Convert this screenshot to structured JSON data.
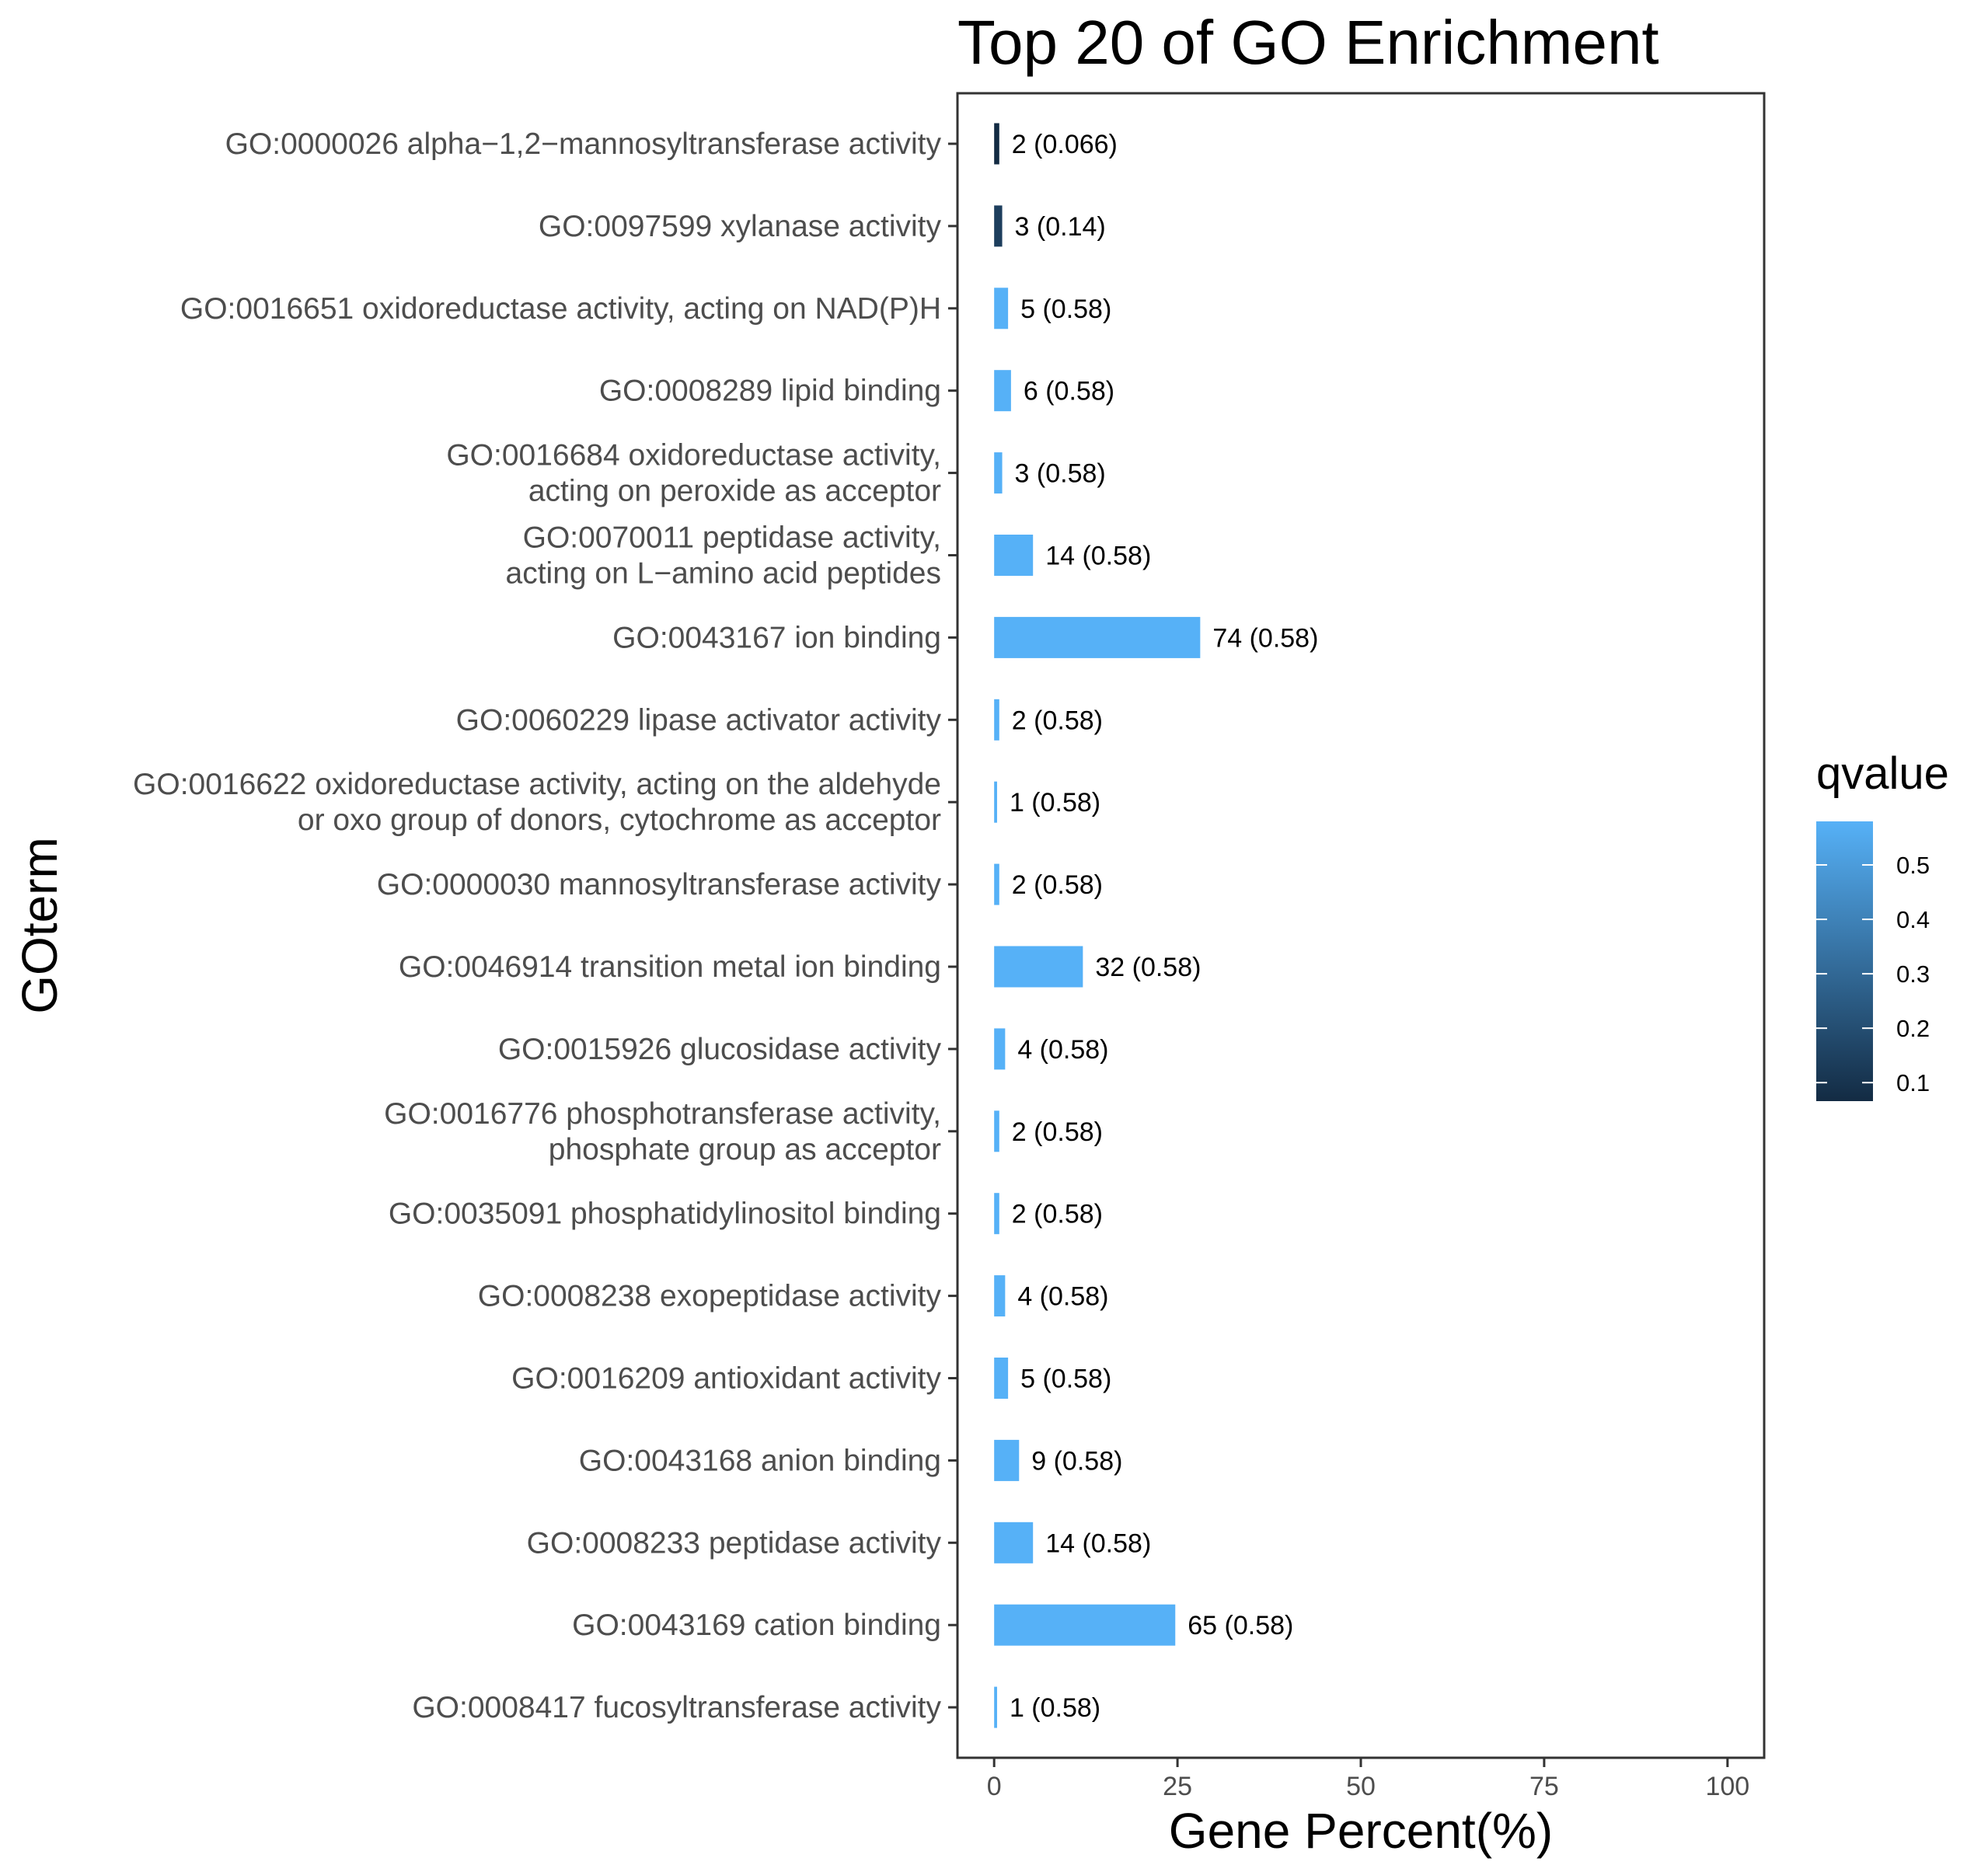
{
  "chart_data": {
    "type": "bar",
    "orientation": "horizontal",
    "title": "Top 20 of GO Enrichment",
    "xlabel": "Gene Percent(%)",
    "ylabel": "GOterm",
    "xlim": [
      -5,
      105
    ],
    "xticks": [
      "0",
      "25",
      "50",
      "75",
      "100"
    ],
    "grid": false,
    "legend": {
      "title": "qvalue",
      "position": "right",
      "type": "colorbar",
      "range": [
        0.066,
        0.58
      ],
      "ticks": [
        "0.1",
        "0.2",
        "0.3",
        "0.4",
        "0.5"
      ],
      "color_low": "#132B43",
      "color_high": "#56B1F7"
    },
    "categories": [
      [
        "GO:0000026 alpha−1,2−mannosyltransferase activity"
      ],
      [
        "GO:0097599 xylanase activity"
      ],
      [
        "GO:0016651 oxidoreductase activity, acting on NAD(P)H"
      ],
      [
        "GO:0008289 lipid binding"
      ],
      [
        "GO:0016684 oxidoreductase activity,",
        "acting on peroxide as acceptor"
      ],
      [
        "GO:0070011 peptidase activity,",
        "acting on L−amino acid peptides"
      ],
      [
        "GO:0043167 ion binding"
      ],
      [
        "GO:0060229 lipase activator activity"
      ],
      [
        "GO:0016622 oxidoreductase activity, acting on the aldehyde",
        "or oxo group of donors, cytochrome as acceptor"
      ],
      [
        "GO:0000030 mannosyltransferase activity"
      ],
      [
        "GO:0046914 transition metal ion binding"
      ],
      [
        "GO:0015926 glucosidase activity"
      ],
      [
        "GO:0016776 phosphotransferase activity,",
        "phosphate group as acceptor"
      ],
      [
        "GO:0035091 phosphatidylinositol binding"
      ],
      [
        "GO:0008238 exopeptidase activity"
      ],
      [
        "GO:0016209 antioxidant activity"
      ],
      [
        "GO:0043168 anion binding"
      ],
      [
        "GO:0008233 peptidase activity"
      ],
      [
        "GO:0043169 cation binding"
      ],
      [
        "GO:0008417 fucosyltransferase activity"
      ]
    ],
    "values": [
      0.7,
      1.1,
      1.9,
      2.3,
      1.1,
      5.3,
      28.1,
      0.7,
      0.4,
      0.7,
      12.1,
      1.5,
      0.7,
      0.7,
      1.5,
      1.9,
      3.4,
      5.3,
      24.7,
      0.4
    ],
    "qvalues": [
      0.066,
      0.14,
      0.58,
      0.58,
      0.58,
      0.58,
      0.58,
      0.58,
      0.58,
      0.58,
      0.58,
      0.58,
      0.58,
      0.58,
      0.58,
      0.58,
      0.58,
      0.58,
      0.58,
      0.58
    ],
    "data_labels": [
      "2 (0.066)",
      "3 (0.14)",
      "5 (0.58)",
      "6 (0.58)",
      "3 (0.58)",
      "14 (0.58)",
      "74 (0.58)",
      "2 (0.58)",
      "1 (0.58)",
      "2 (0.58)",
      "32 (0.58)",
      "4 (0.58)",
      "2 (0.58)",
      "2 (0.58)",
      "4 (0.58)",
      "5 (0.58)",
      "9 (0.58)",
      "14 (0.58)",
      "65 (0.58)",
      "1 (0.58)"
    ]
  }
}
